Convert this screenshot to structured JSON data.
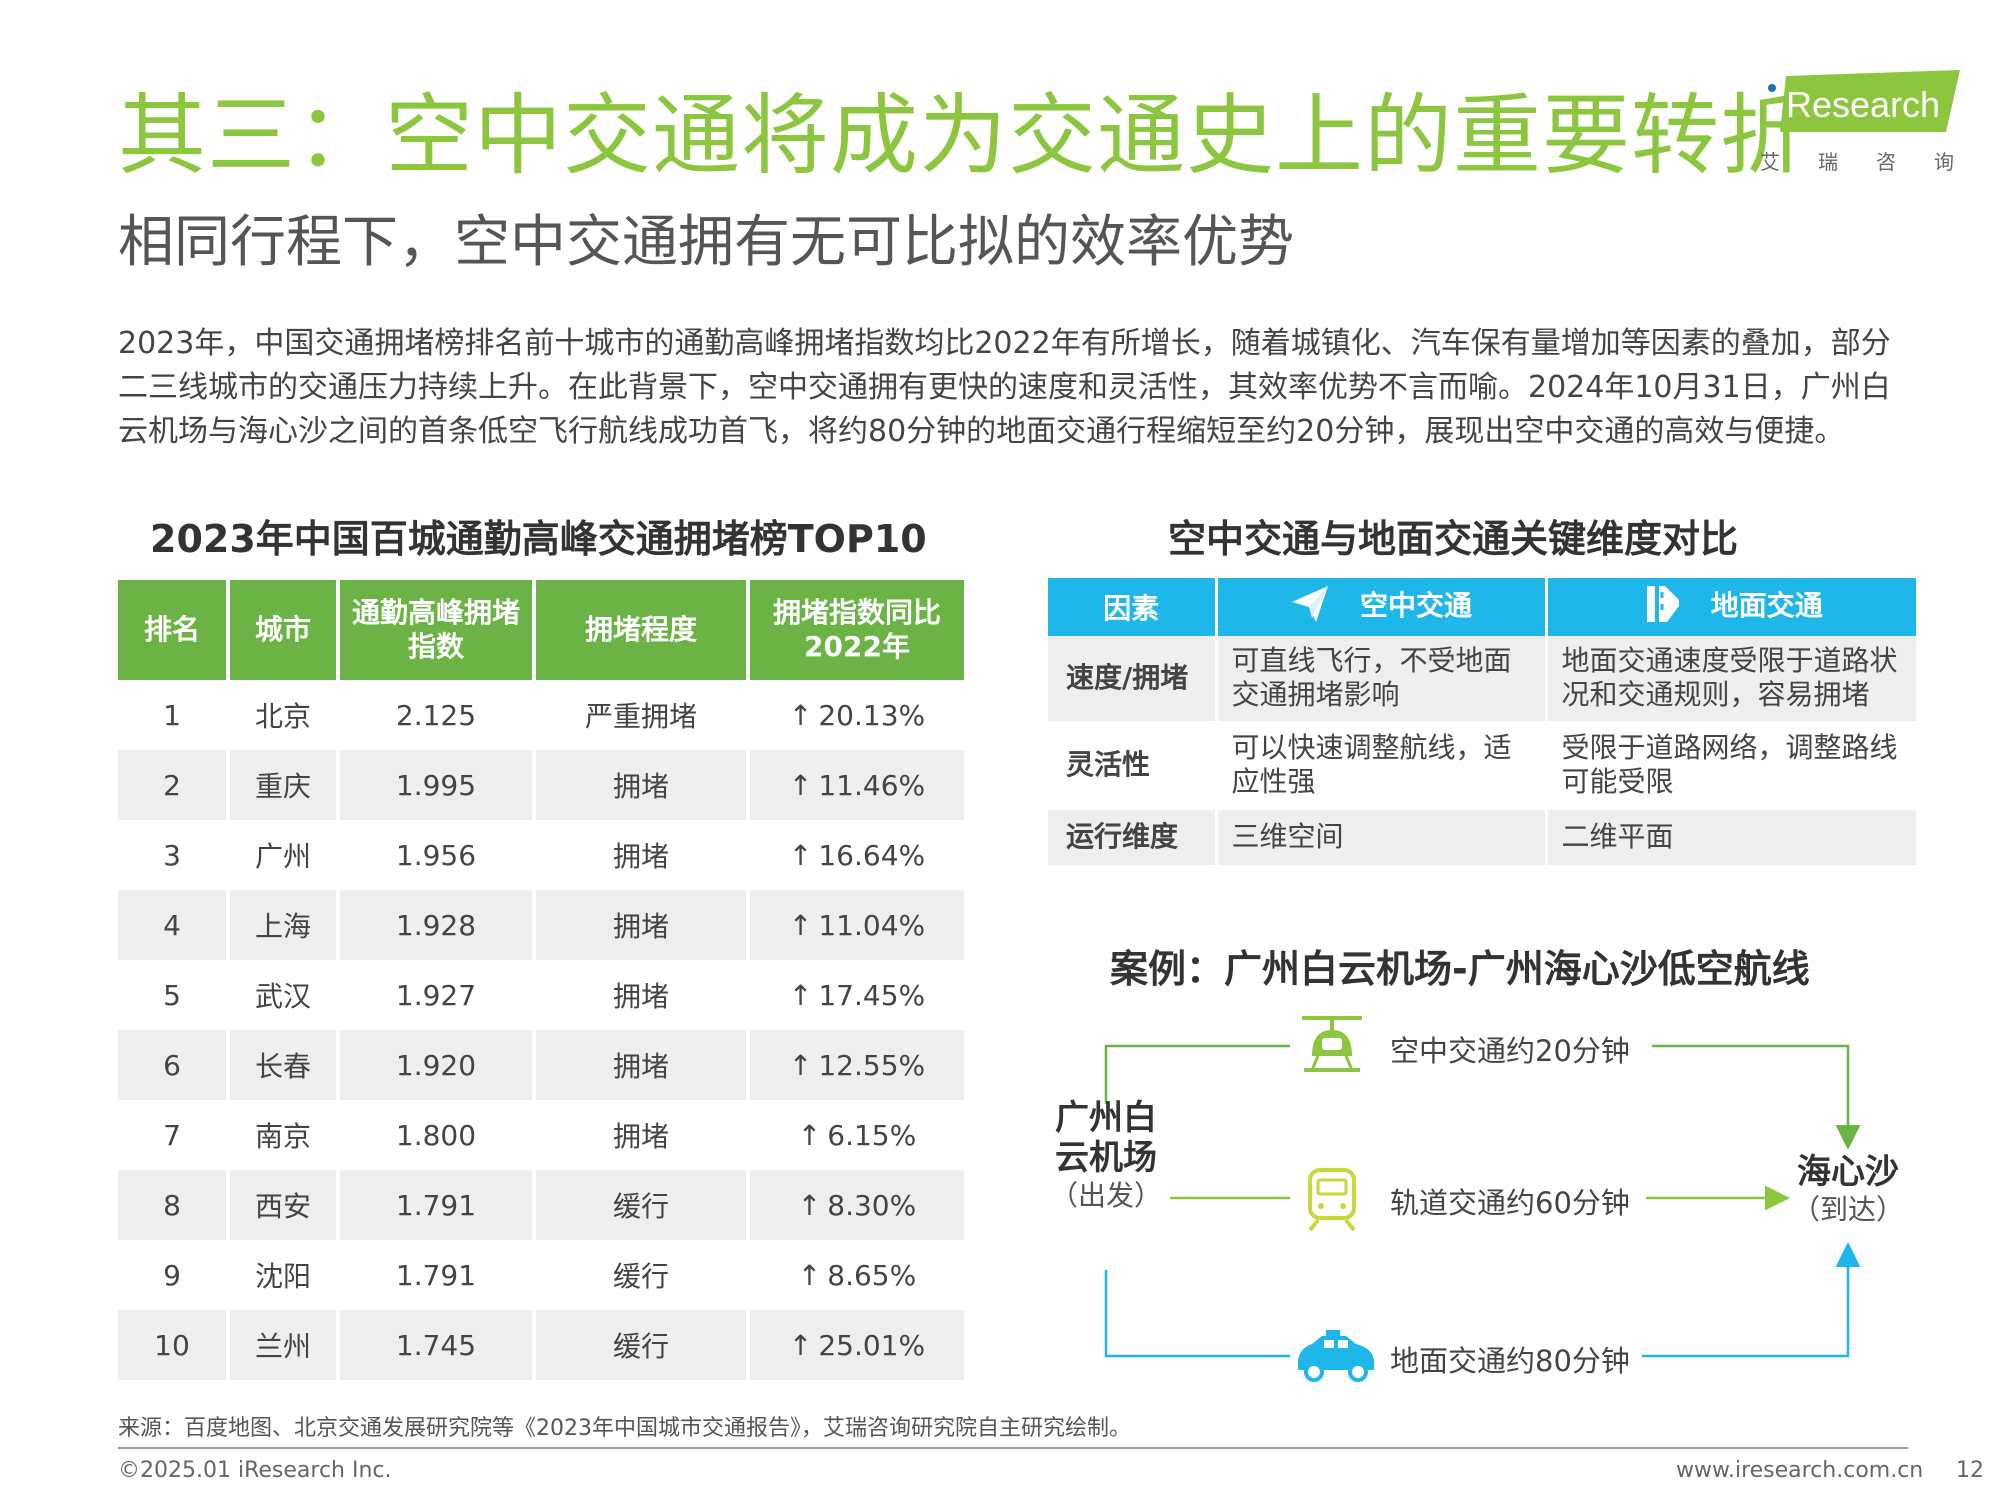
{
  "header": {
    "title": "其三：空中交通将成为交通史上的重要转折",
    "subtitle": "相同行程下，空中交通拥有无可比拟的效率优势"
  },
  "logo": {
    "word": "Research",
    "cn": "艾瑞咨询",
    "color": "#8cc63f"
  },
  "paragraph": "2023年，中国交通拥堵榜排名前十城市的通勤高峰拥堵指数均比2022年有所增长，随着城镇化、汽车保有量增加等因素的叠加，部分二三线城市的交通压力持续上升。在此背景下，空中交通拥有更快的速度和灵活性，其效率优势不言而喻。2024年10月31日，广州白云机场与海心沙之间的首条低空飞行航线成功首飞，将约80分钟的地面交通行程缩短至约20分钟，展现出空中交通的高效与便捷。",
  "ranking": {
    "title": "2023年中国百城通勤高峰交通拥堵榜TOP10",
    "headers": [
      "排名",
      "城市",
      "通勤高峰拥堵指数",
      "拥堵程度",
      "拥堵指数同比2022年"
    ],
    "rows": [
      {
        "rank": "1",
        "city": "北京",
        "index": "2.125",
        "level": "严重拥堵",
        "yoy": "20.13%"
      },
      {
        "rank": "2",
        "city": "重庆",
        "index": "1.995",
        "level": "拥堵",
        "yoy": "11.46%"
      },
      {
        "rank": "3",
        "city": "广州",
        "index": "1.956",
        "level": "拥堵",
        "yoy": "16.64%"
      },
      {
        "rank": "4",
        "city": "上海",
        "index": "1.928",
        "level": "拥堵",
        "yoy": "11.04%"
      },
      {
        "rank": "5",
        "city": "武汉",
        "index": "1.927",
        "level": "拥堵",
        "yoy": "17.45%"
      },
      {
        "rank": "6",
        "city": "长春",
        "index": "1.920",
        "level": "拥堵",
        "yoy": "12.55%"
      },
      {
        "rank": "7",
        "city": "南京",
        "index": "1.800",
        "level": "拥堵",
        "yoy": "6.15%"
      },
      {
        "rank": "8",
        "city": "西安",
        "index": "1.791",
        "level": "缓行",
        "yoy": "8.30%"
      },
      {
        "rank": "9",
        "city": "沈阳",
        "index": "1.791",
        "level": "缓行",
        "yoy": "8.65%"
      },
      {
        "rank": "10",
        "city": "兰州",
        "index": "1.745",
        "level": "缓行",
        "yoy": "25.01%"
      }
    ],
    "up_symbol": "↑",
    "header_color": "#6ab344"
  },
  "comparison": {
    "title": "空中交通与地面交通关键维度对比",
    "headers": [
      "因素",
      "空中交通",
      "地面交通"
    ],
    "rows": [
      {
        "factor": "速度/拥堵",
        "air": "可直线飞行，不受地面交通拥堵影响",
        "ground": "地面交通速度受限于道路状况和交通规则，容易拥堵"
      },
      {
        "factor": "灵活性",
        "air": "可以快速调整航线，适应性强",
        "ground": "受限于道路网络，调整路线可能受限"
      },
      {
        "factor": "运行维度",
        "air": "三维空间",
        "ground": "二维平面"
      }
    ],
    "header_color": "#1fb6ea",
    "icons": [
      "paper-plane-icon",
      "road-icon"
    ]
  },
  "case": {
    "title": "案例：广州白云机场-广州海心沙低空航线",
    "origin_name": "广州白云机场",
    "origin_sub": "（出发）",
    "dest_name": "海心沙",
    "dest_sub": "（到达）",
    "routes": [
      {
        "label": "空中交通约20分钟",
        "icon": "air-taxi-icon",
        "color": "#6ab344"
      },
      {
        "label": "轨道交通约60分钟",
        "icon": "train-icon",
        "color": "#8cc63f"
      },
      {
        "label": "地面交通约80分钟",
        "icon": "car-icon",
        "color": "#1fb6ea"
      }
    ]
  },
  "footer": {
    "source": "来源：百度地图、北京交通发展研究院等《2023年中国城市交通报告》，艾瑞咨询研究院自主研究绘制。",
    "copyright": "©2025.01 iResearch Inc.",
    "website": "www.iresearch.com.cn",
    "page": "12"
  }
}
